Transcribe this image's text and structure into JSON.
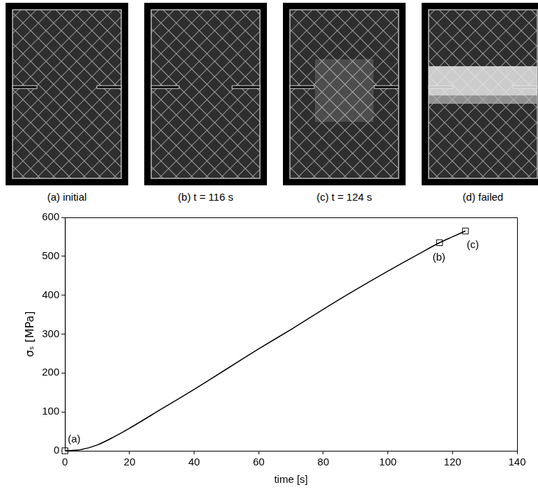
{
  "photos": [
    {
      "caption": "(a) initial"
    },
    {
      "caption": "(b) t = 116 s"
    },
    {
      "caption": "(c) t = 124 s"
    },
    {
      "caption": "(d) failed"
    }
  ],
  "chart_data": {
    "type": "line",
    "x_label": "time [s]",
    "y_label": "σₛ [MPa]",
    "x": [
      0,
      5,
      10,
      15,
      20,
      30,
      40,
      50,
      60,
      70,
      80,
      90,
      100,
      110,
      116,
      120,
      124
    ],
    "values": [
      0,
      3,
      15,
      35,
      58,
      108,
      158,
      210,
      262,
      312,
      364,
      414,
      462,
      508,
      535,
      550,
      565
    ],
    "color": "#000000",
    "xlim": [
      0,
      140
    ],
    "xticks": [
      0,
      20,
      40,
      60,
      80,
      100,
      120,
      140
    ],
    "ylim": [
      0,
      600
    ],
    "yticks": [
      0,
      100,
      200,
      300,
      400,
      500,
      600
    ],
    "grid": false,
    "markers": {
      "x": [
        0,
        116,
        124
      ],
      "values": [
        0,
        535,
        565
      ],
      "labels": [
        "(a)",
        "(b)",
        "(c)"
      ],
      "marker": "square"
    }
  }
}
